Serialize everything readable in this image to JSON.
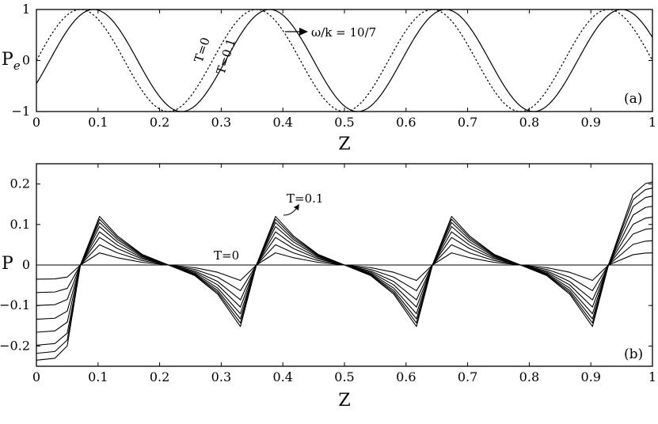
{
  "chart_data": [
    {
      "type": "line",
      "panel_label": "(a)",
      "xlabel": "Z",
      "ylabel": "P",
      "ylabel_sub": "e",
      "xlim": [
        0,
        1
      ],
      "ylim": [
        -1,
        1
      ],
      "x_ticks": [
        "0",
        "0.1",
        "0.2",
        "0.3",
        "0.4",
        "0.5",
        "0.6",
        "0.7",
        "0.8",
        "0.9",
        "1"
      ],
      "y_ticks": [
        "−1",
        "0",
        "1"
      ],
      "y_tick_values": [
        -1,
        0,
        1
      ],
      "wavelength": 0.2857,
      "series": [
        {
          "name": "T=0",
          "style": "dotted",
          "formula": "sin(2*pi*z/0.2857)"
        },
        {
          "name": "T=0.1",
          "style": "solid",
          "formula": "sin(2*pi*(z-0.0214)/0.2857)",
          "phase_shift_z": 0.0214
        }
      ],
      "annotation": "ω/k = 10/7",
      "grid": false
    },
    {
      "type": "line",
      "panel_label": "(b)",
      "xlabel": "Z",
      "ylabel": "P",
      "xlim": [
        0,
        1
      ],
      "ylim": [
        -0.25,
        0.25
      ],
      "x_ticks": [
        "0",
        "0.1",
        "0.2",
        "0.3",
        "0.4",
        "0.5",
        "0.6",
        "0.7",
        "0.8",
        "0.9",
        "1"
      ],
      "y_ticks": [
        "−0.2",
        "−0.1",
        "0",
        "0.1",
        "0.2"
      ],
      "y_tick_values": [
        -0.2,
        -0.1,
        0,
        0.1,
        0.2
      ],
      "zero_crossings": [
        0.0714,
        0.2143,
        0.3571,
        0.5,
        0.6429,
        0.7857,
        0.9286
      ],
      "series": [
        {
          "name": "T=0",
          "level": 0,
          "peak": 0
        },
        {
          "level": 1,
          "peak": 0.03,
          "left_end": -0.035,
          "right_end": 0.03
        },
        {
          "level": 2,
          "peak": 0.05,
          "left_end": -0.068,
          "right_end": 0.06
        },
        {
          "level": 3,
          "peak": 0.068,
          "left_end": -0.1,
          "right_end": 0.09
        },
        {
          "level": 4,
          "peak": 0.082,
          "left_end": -0.134,
          "right_end": 0.118
        },
        {
          "level": 5,
          "peak": 0.095,
          "left_end": -0.166,
          "right_end": 0.145
        },
        {
          "level": 6,
          "peak": 0.105,
          "left_end": -0.198,
          "right_end": 0.17
        },
        {
          "level": 7,
          "peak": 0.113,
          "left_end": -0.218,
          "right_end": 0.19
        },
        {
          "name": "T=0.1",
          "level": 8,
          "peak": 0.12,
          "left_end": -0.235,
          "right_end": 0.205
        }
      ],
      "trough_value": -0.152,
      "annotations": [
        "T=0",
        "T=0.1"
      ],
      "grid": false
    }
  ]
}
